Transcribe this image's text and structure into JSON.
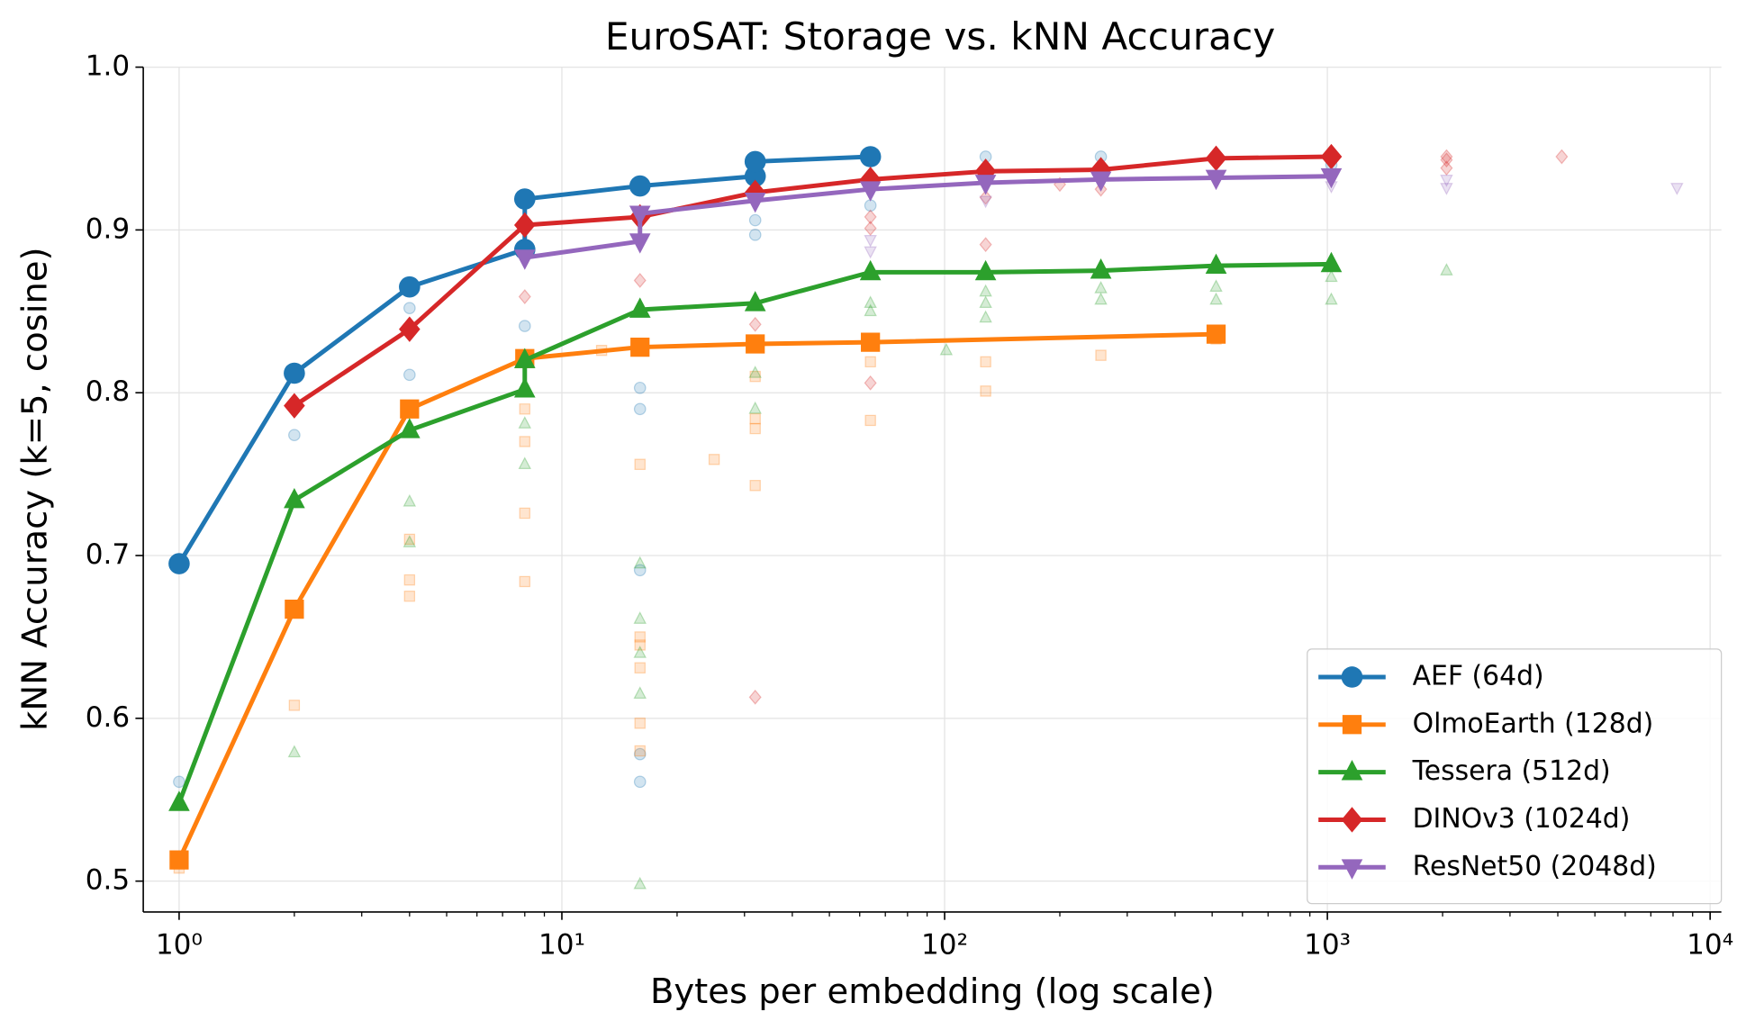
{
  "chart_data": {
    "type": "line",
    "title": "EuroSAT: Storage vs. kNN Accuracy",
    "x_label": "Bytes per embedding (log scale)",
    "y_label": "kNN Accuracy (k=5, cosine)",
    "xscale": "log",
    "xlim": [
      0.806,
      10700
    ],
    "ylim": [
      0.481,
      1.0
    ],
    "xticks": [
      {
        "value": 1,
        "label": "10⁰"
      },
      {
        "value": 10,
        "label": "10¹"
      },
      {
        "value": 100,
        "label": "10²"
      },
      {
        "value": 1000,
        "label": "10³"
      },
      {
        "value": 10000,
        "label": "10⁴"
      }
    ],
    "xminorticks": [
      2,
      3,
      4,
      5,
      6,
      7,
      8,
      9,
      20,
      30,
      40,
      50,
      60,
      70,
      80,
      90,
      200,
      300,
      400,
      500,
      600,
      700,
      800,
      900,
      2000,
      3000,
      4000,
      5000,
      6000,
      7000,
      8000,
      9000
    ],
    "yticks": [
      0.5,
      0.6,
      0.7,
      0.8,
      0.9,
      {
        "value": 1.0,
        "label": "1.0"
      }
    ],
    "grid": true,
    "legend": "lower right",
    "series": [
      {
        "name": "AEF (64d)",
        "color": "#1f77b4",
        "marker": "circle",
        "x": [
          1,
          2,
          4,
          8,
          8,
          16,
          32,
          32,
          64
        ],
        "values": [
          0.695,
          0.812,
          0.865,
          0.888,
          0.919,
          0.927,
          0.933,
          0.942,
          0.945
        ],
        "faint": {
          "x": [
            1,
            2,
            4,
            4,
            8,
            8,
            16,
            16,
            16,
            16,
            16,
            32,
            32,
            64,
            128,
            256,
            1024
          ],
          "values": [
            0.561,
            0.774,
            0.852,
            0.811,
            0.841,
            0.888,
            0.803,
            0.79,
            0.691,
            0.578,
            0.561,
            0.906,
            0.897,
            0.915,
            0.945,
            0.945,
            0.94
          ]
        }
      },
      {
        "name": "OlmoEarth (128d)",
        "color": "#ff7f0e",
        "marker": "square",
        "x": [
          1,
          2,
          4,
          8,
          16,
          32,
          64,
          512
        ],
        "values": [
          0.513,
          0.667,
          0.79,
          0.821,
          0.828,
          0.83,
          0.831,
          0.836
        ],
        "faint": {
          "x": [
            1,
            2,
            4,
            4,
            4,
            8,
            8,
            8,
            8,
            12.7,
            16,
            16,
            16,
            16,
            16,
            16,
            25,
            32,
            32,
            32,
            32,
            64,
            64,
            128,
            128,
            256,
            512
          ],
          "values": [
            0.508,
            0.608,
            0.71,
            0.685,
            0.675,
            0.79,
            0.77,
            0.726,
            0.684,
            0.826,
            0.756,
            0.65,
            0.645,
            0.631,
            0.597,
            0.58,
            0.759,
            0.81,
            0.784,
            0.778,
            0.743,
            0.819,
            0.783,
            0.819,
            0.801,
            0.823,
            0.833
          ]
        }
      },
      {
        "name": "Tessera (512d)",
        "color": "#2ca02c",
        "marker": "triangle",
        "x": [
          1,
          2,
          4,
          8,
          8,
          16,
          32,
          64,
          128,
          256,
          512,
          1024
        ],
        "values": [
          0.548,
          0.734,
          0.777,
          0.802,
          0.82,
          0.851,
          0.855,
          0.874,
          0.874,
          0.875,
          0.878,
          0.879
        ],
        "faint": {
          "x": [
            2,
            4,
            4,
            8,
            8,
            16,
            16,
            16,
            16,
            16,
            32,
            32,
            64,
            64,
            101,
            128,
            128,
            128,
            256,
            256,
            512,
            512,
            1024,
            1024,
            2048
          ],
          "values": [
            0.579,
            0.733,
            0.708,
            0.781,
            0.756,
            0.695,
            0.661,
            0.64,
            0.615,
            0.498,
            0.812,
            0.79,
            0.855,
            0.85,
            0.826,
            0.862,
            0.855,
            0.846,
            0.864,
            0.857,
            0.865,
            0.857,
            0.871,
            0.857,
            0.875
          ]
        }
      },
      {
        "name": "DINOv3 (1024d)",
        "color": "#d62728",
        "marker": "diamond",
        "x": [
          2,
          4,
          8,
          16,
          32,
          64,
          128,
          256,
          512,
          1024
        ],
        "values": [
          0.792,
          0.839,
          0.903,
          0.908,
          0.923,
          0.931,
          0.936,
          0.937,
          0.944,
          0.945
        ],
        "faint": {
          "x": [
            8,
            16,
            32,
            32,
            64,
            64,
            64,
            128,
            128,
            200,
            256,
            2048,
            2048,
            2048,
            4096
          ],
          "values": [
            0.859,
            0.869,
            0.842,
            0.613,
            0.908,
            0.901,
            0.806,
            0.891,
            0.92,
            0.928,
            0.925,
            0.945,
            0.943,
            0.938,
            0.945
          ]
        }
      },
      {
        "name": "ResNet50 (2048d)",
        "color": "#9467bd",
        "marker": "down",
        "x": [
          8,
          16,
          16,
          32,
          64,
          128,
          256,
          512,
          1024
        ],
        "values": [
          0.883,
          0.893,
          0.91,
          0.918,
          0.925,
          0.929,
          0.931,
          0.932,
          0.933
        ],
        "faint": {
          "x": [
            64,
            64,
            128,
            512,
            1024,
            2048,
            2048,
            8192
          ],
          "values": [
            0.894,
            0.887,
            0.918,
            0.93,
            0.927,
            0.931,
            0.926,
            0.926
          ]
        }
      }
    ]
  }
}
